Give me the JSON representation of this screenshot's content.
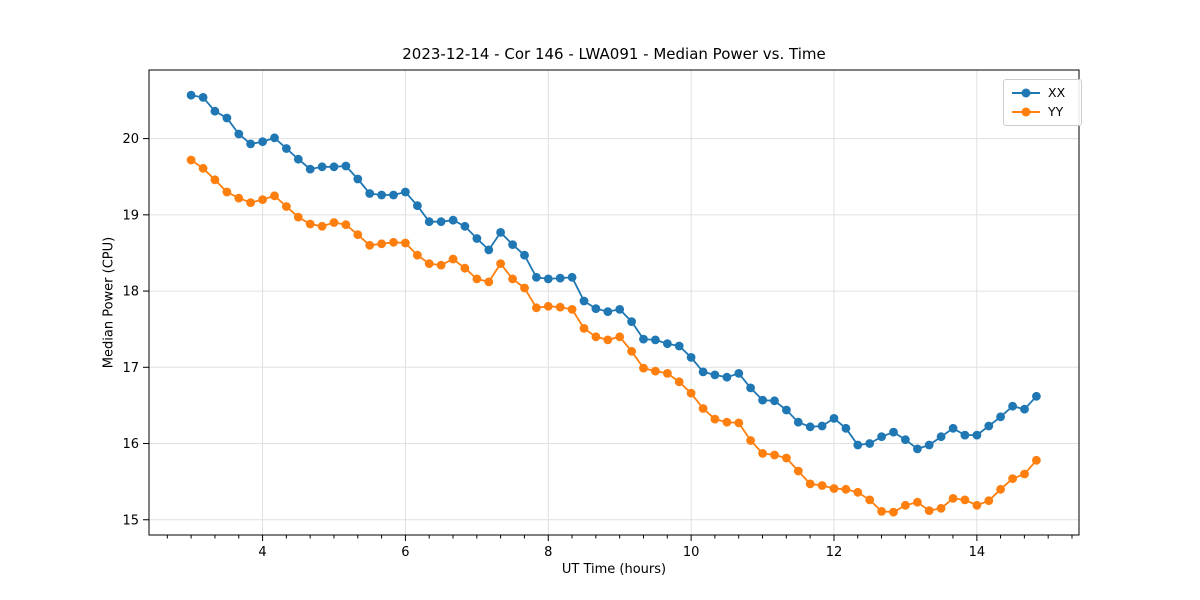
{
  "chart_data": {
    "type": "line",
    "title": "2023-12-14 - Cor 146 - LWA091 - Median Power vs. Time",
    "xlabel": "UT Time (hours)",
    "ylabel": "Median Power (CPU)",
    "xlim": [
      2.41,
      15.43
    ],
    "ylim": [
      14.8,
      20.9
    ],
    "xticks": [
      4,
      6,
      8,
      10,
      12,
      14
    ],
    "yticks": [
      15,
      16,
      17,
      18,
      19,
      20
    ],
    "x_minor_step": 0.3333,
    "grid": true,
    "grid_color": "#e0e0e0",
    "legend_position": "upper right",
    "marker": "o",
    "x": [
      3.0,
      3.167,
      3.333,
      3.5,
      3.667,
      3.833,
      4.0,
      4.167,
      4.333,
      4.5,
      4.667,
      4.833,
      5.0,
      5.167,
      5.333,
      5.5,
      5.667,
      5.833,
      6.0,
      6.167,
      6.333,
      6.5,
      6.667,
      6.833,
      7.0,
      7.167,
      7.333,
      7.5,
      7.667,
      7.833,
      8.0,
      8.167,
      8.333,
      8.5,
      8.667,
      8.833,
      9.0,
      9.167,
      9.333,
      9.5,
      9.667,
      9.833,
      10.0,
      10.167,
      10.333,
      10.5,
      10.667,
      10.833,
      11.0,
      11.167,
      11.333,
      11.5,
      11.667,
      11.833,
      12.0,
      12.167,
      12.333,
      12.5,
      12.667,
      12.833,
      13.0,
      13.167,
      13.333,
      13.5,
      13.667,
      13.833,
      14.0,
      14.167,
      14.333,
      14.5,
      14.667,
      14.833
    ],
    "series": [
      {
        "name": "XX",
        "color": "#1f77b4",
        "values": [
          20.57,
          20.54,
          20.36,
          20.27,
          20.06,
          19.93,
          19.96,
          20.01,
          19.87,
          19.73,
          19.6,
          19.63,
          19.63,
          19.64,
          19.47,
          19.28,
          19.26,
          19.26,
          19.3,
          19.12,
          18.91,
          18.91,
          18.93,
          18.85,
          18.69,
          18.54,
          18.77,
          18.61,
          18.47,
          18.18,
          18.16,
          18.17,
          18.18,
          17.87,
          17.77,
          17.73,
          17.76,
          17.6,
          17.37,
          17.36,
          17.31,
          17.28,
          17.13,
          16.94,
          16.9,
          16.87,
          16.92,
          16.73,
          16.57,
          16.56,
          16.44,
          16.28,
          16.22,
          16.23,
          16.33,
          16.2,
          15.98,
          16.0,
          16.09,
          16.15,
          16.05,
          15.93,
          15.98,
          16.09,
          16.2,
          16.11,
          16.11,
          16.23,
          16.35,
          16.49,
          16.45,
          16.62
        ]
      },
      {
        "name": "YY",
        "color": "#ff7f0e",
        "values": [
          19.72,
          19.61,
          19.46,
          19.3,
          19.22,
          19.16,
          19.2,
          19.25,
          19.11,
          18.97,
          18.88,
          18.85,
          18.9,
          18.87,
          18.74,
          18.6,
          18.62,
          18.64,
          18.63,
          18.47,
          18.36,
          18.34,
          18.42,
          18.3,
          18.16,
          18.12,
          18.36,
          18.16,
          18.04,
          17.78,
          17.8,
          17.79,
          17.76,
          17.51,
          17.4,
          17.36,
          17.4,
          17.21,
          16.99,
          16.95,
          16.92,
          16.81,
          16.66,
          16.46,
          16.32,
          16.28,
          16.27,
          16.04,
          15.87,
          15.85,
          15.81,
          15.64,
          15.47,
          15.45,
          15.41,
          15.4,
          15.36,
          15.26,
          15.11,
          15.1,
          15.19,
          15.23,
          15.12,
          15.15,
          15.28,
          15.26,
          15.19,
          15.25,
          15.4,
          15.54,
          15.6,
          15.78
        ]
      }
    ]
  }
}
